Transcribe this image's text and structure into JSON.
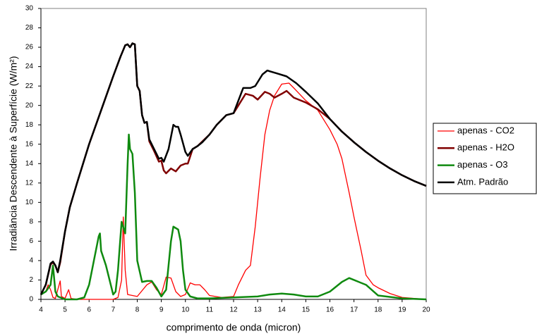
{
  "chart_data": {
    "type": "line",
    "xlabel": "comprimento de onda (micron)",
    "ylabel": "Irradiância Descendente à Superfície (W/m²)",
    "xlim": [
      4,
      20
    ],
    "xticks": [
      4,
      5,
      6,
      7,
      8,
      9,
      10,
      11,
      12,
      13,
      14,
      15,
      16,
      17,
      18,
      19,
      20
    ],
    "ylim": [
      0,
      30
    ],
    "yticks": [
      0,
      2,
      4,
      6,
      8,
      10,
      12,
      14,
      16,
      18,
      20,
      22,
      24,
      26,
      28,
      30
    ],
    "legend": "right",
    "series": [
      {
        "name": "apenas - CO2",
        "color": "#ff0000",
        "line_width": 1.3,
        "x": [
          4.0,
          4.2,
          4.3,
          4.4,
          4.5,
          4.6,
          4.7,
          4.8,
          4.85,
          5.0,
          5.15,
          5.25,
          5.5,
          6.0,
          7.0,
          7.2,
          7.35,
          7.42,
          7.5,
          7.6,
          8.0,
          8.4,
          8.6,
          8.8,
          9.0,
          9.2,
          9.4,
          9.6,
          9.8,
          10.0,
          10.2,
          10.4,
          10.6,
          10.8,
          11.0,
          11.5,
          12.0,
          12.2,
          12.5,
          12.7,
          12.9,
          13.1,
          13.3,
          13.5,
          13.7,
          14.0,
          14.3,
          14.5,
          15.0,
          15.5,
          16.0,
          16.3,
          16.5,
          16.8,
          17.0,
          17.3,
          17.5,
          17.8,
          18.0,
          18.5,
          19.0,
          20.0
        ],
        "values": [
          0.5,
          0.8,
          1.5,
          1.0,
          0.2,
          0.1,
          1.0,
          1.9,
          0.3,
          0.1,
          1.0,
          0.1,
          0,
          0,
          0,
          0.2,
          2,
          8.5,
          3,
          0.5,
          0.3,
          1.5,
          1.8,
          1.0,
          0.5,
          2.3,
          2.2,
          0.8,
          0.3,
          0.5,
          1.7,
          1.5,
          1.5,
          1.0,
          0.4,
          0.2,
          0.3,
          1.5,
          3.0,
          3.5,
          7.5,
          12.5,
          17,
          19.5,
          21.0,
          22.2,
          22.3,
          21.8,
          20.5,
          19.5,
          17.5,
          16.0,
          14.5,
          11.0,
          8.5,
          5.0,
          2.5,
          1.5,
          1.2,
          0.6,
          0.2,
          0
        ]
      },
      {
        "name": "apenas - H2O",
        "color": "#800000",
        "line_width": 2.5,
        "x": [
          4.0,
          4.2,
          4.4,
          4.5,
          4.6,
          4.7,
          4.8,
          5.0,
          5.2,
          5.5,
          6.0,
          6.5,
          7.0,
          7.3,
          7.5,
          7.6,
          7.7,
          7.8,
          7.9,
          8.0,
          8.1,
          8.2,
          8.3,
          8.4,
          8.5,
          8.7,
          8.9,
          9.0,
          9.1,
          9.2,
          9.4,
          9.6,
          9.8,
          10.0,
          10.1,
          10.3,
          10.5,
          11.0,
          11.3,
          11.7,
          12.0,
          12.2,
          12.5,
          12.8,
          13.0,
          13.3,
          13.5,
          13.7,
          14.0,
          14.2,
          14.5,
          15.0,
          15.5,
          16.0,
          16.5,
          17.0,
          17.5,
          18.0,
          18.5,
          19.0,
          19.5,
          20.0
        ],
        "values": [
          0.5,
          1.5,
          3.6,
          3.8,
          3.5,
          2.8,
          3.8,
          7.0,
          9.5,
          12,
          16,
          19.5,
          23,
          25,
          26.2,
          26.3,
          26.0,
          26.4,
          26.3,
          22,
          21.5,
          19,
          18.2,
          18.3,
          16.3,
          15.3,
          14.2,
          14.3,
          13.3,
          13.0,
          13.5,
          13.2,
          13.8,
          14.0,
          14.0,
          15.5,
          15.8,
          17.0,
          18,
          19,
          19.2,
          20.0,
          21.2,
          21.0,
          20.6,
          21.4,
          21.2,
          20.8,
          21.2,
          21.5,
          20.8,
          20.3,
          19.6,
          18.6,
          17.3,
          16.2,
          15.2,
          14.3,
          13.5,
          12.8,
          12.2,
          11.7
        ]
      },
      {
        "name": "apenas - O3",
        "color": "#0f8a0f",
        "line_width": 2.5,
        "x": [
          4.0,
          4.2,
          4.4,
          4.5,
          4.6,
          4.7,
          5.0,
          5.5,
          5.8,
          6.0,
          6.2,
          6.4,
          6.45,
          6.5,
          6.7,
          6.9,
          7.0,
          7.1,
          7.2,
          7.35,
          7.45,
          7.5,
          7.6,
          7.65,
          7.7,
          7.8,
          7.9,
          8.0,
          8.2,
          8.4,
          8.6,
          8.8,
          9.0,
          9.2,
          9.4,
          9.5,
          9.7,
          9.8,
          9.9,
          10.0,
          10.2,
          10.5,
          11.0,
          12.0,
          13.0,
          13.5,
          14.0,
          14.5,
          15.0,
          15.5,
          16.0,
          16.5,
          16.8,
          17.0,
          17.5,
          18.0,
          19.0,
          20.0
        ],
        "values": [
          0.5,
          0.8,
          1.5,
          3.5,
          0.8,
          0.3,
          0,
          0,
          0.2,
          1.5,
          4.0,
          6.5,
          6.8,
          5.0,
          3.5,
          1.5,
          0.5,
          0.8,
          3,
          8.0,
          7.2,
          6.8,
          14,
          17.0,
          15.5,
          15,
          11,
          4,
          1.8,
          1.9,
          1.9,
          1.2,
          0.3,
          1.0,
          6.0,
          7.5,
          7.2,
          6.0,
          3.0,
          1.0,
          0.3,
          0.1,
          0.1,
          0.2,
          0.3,
          0.5,
          0.6,
          0.5,
          0.3,
          0.3,
          0.8,
          1.8,
          2.2,
          2.0,
          1.5,
          0.4,
          0.1,
          0
        ]
      },
      {
        "name": "Atm. Padrão",
        "color": "#000000",
        "line_width": 2.5,
        "x": [
          4.0,
          4.2,
          4.4,
          4.5,
          4.6,
          4.7,
          4.8,
          5.0,
          5.2,
          5.5,
          6.0,
          6.5,
          7.0,
          7.3,
          7.5,
          7.6,
          7.7,
          7.8,
          7.9,
          8.0,
          8.1,
          8.2,
          8.3,
          8.4,
          8.5,
          8.7,
          8.9,
          9.0,
          9.1,
          9.3,
          9.5,
          9.6,
          9.7,
          9.8,
          10.0,
          10.1,
          10.3,
          10.5,
          10.7,
          11.0,
          11.3,
          11.7,
          12.0,
          12.2,
          12.4,
          12.7,
          12.9,
          13.2,
          13.4,
          13.8,
          14.2,
          14.6,
          15.0,
          15.5,
          16.0,
          16.5,
          17.0,
          17.5,
          18.0,
          18.5,
          19.0,
          19.5,
          20.0
        ],
        "values": [
          0.5,
          1.5,
          3.7,
          3.9,
          3.5,
          2.8,
          4.0,
          7.0,
          9.5,
          12,
          16,
          19.5,
          23,
          25,
          26.2,
          26.3,
          26.0,
          26.4,
          26.3,
          22,
          21.5,
          19,
          18.2,
          18.3,
          16.5,
          15.5,
          14.5,
          14.6,
          14.2,
          15.5,
          18.0,
          17.8,
          17.8,
          17.0,
          15.2,
          14.8,
          15.5,
          15.8,
          16.2,
          17.0,
          18.0,
          19.0,
          19.2,
          20.5,
          21.8,
          21.8,
          22.0,
          23.2,
          23.6,
          23.3,
          23.0,
          22.3,
          21.4,
          20.2,
          18.6,
          17.3,
          16.2,
          15.2,
          14.3,
          13.5,
          12.8,
          12.2,
          11.7
        ]
      }
    ]
  }
}
